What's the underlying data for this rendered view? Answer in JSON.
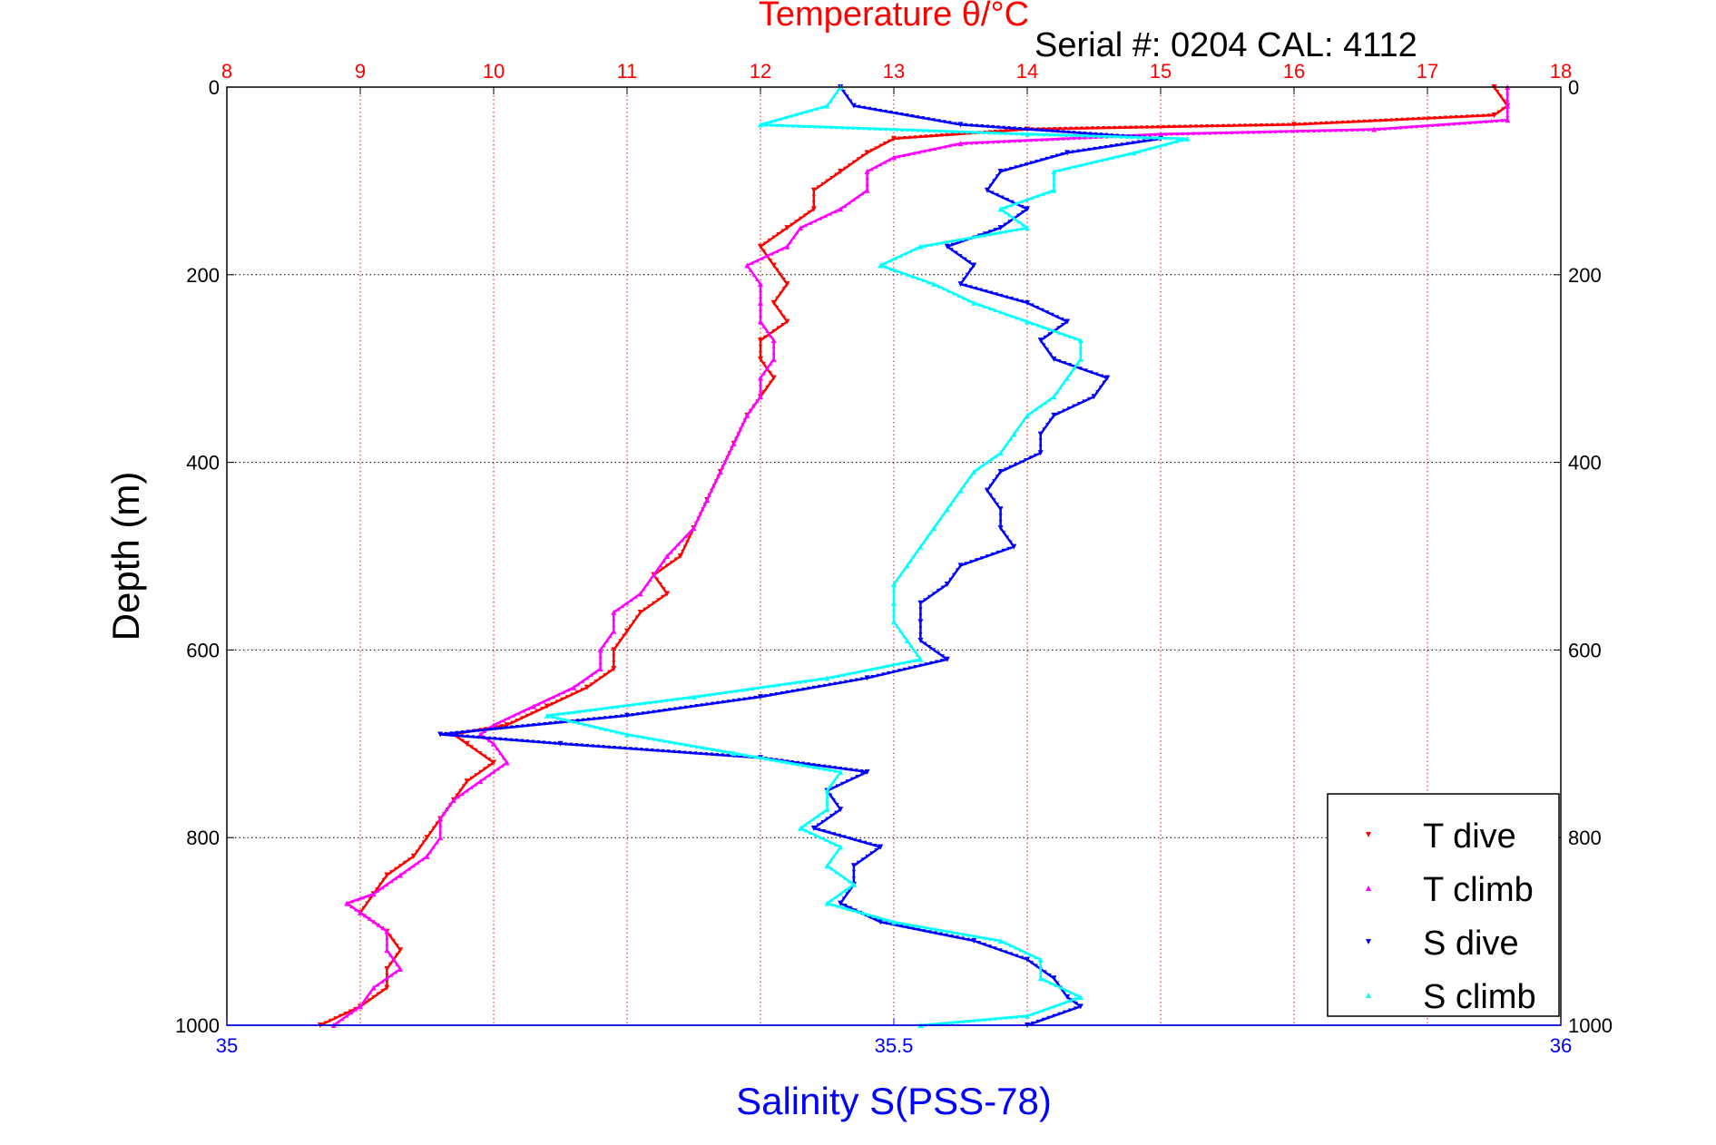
{
  "chart_data": {
    "type": "scatter",
    "title": "Temperature θ/°C",
    "subtitle": "Serial #: 0204  CAL: 4112",
    "ylabel": "Depth (m)",
    "x2label": "Salinity S(PSS-78)",
    "colors": {
      "title": "#ff0000",
      "x2label": "#0000ff",
      "grid_temp": "#ff0000",
      "grid_depth": "#000000"
    },
    "x_top": {
      "label": "Temperature θ/°C",
      "range": [
        8,
        18
      ],
      "ticks": [
        "8",
        "9",
        "10",
        "11",
        "12",
        "13",
        "14",
        "15",
        "16",
        "17",
        "18"
      ],
      "color": "#ff0000"
    },
    "x_bottom": {
      "label": "Salinity S(PSS-78)",
      "range": [
        35,
        36
      ],
      "ticks": [
        "35",
        "35.5",
        "36"
      ],
      "color": "#0000ff"
    },
    "y": {
      "label": "Depth (m)",
      "range": [
        0,
        1000
      ],
      "reversed": true,
      "ticks": [
        "0",
        "200",
        "400",
        "600",
        "800",
        "1000"
      ]
    },
    "grid": true,
    "legend_placement": "bottom-right",
    "series": [
      {
        "name": "T dive",
        "axis": "temperature",
        "color": "#ff0000",
        "marker": "triangle-down",
        "points": [
          [
            17.5,
            0
          ],
          [
            17.6,
            20
          ],
          [
            17.5,
            30
          ],
          [
            16.0,
            40
          ],
          [
            14.0,
            45
          ],
          [
            13.0,
            55
          ],
          [
            12.8,
            70
          ],
          [
            12.6,
            90
          ],
          [
            12.4,
            110
          ],
          [
            12.4,
            130
          ],
          [
            12.2,
            150
          ],
          [
            12.0,
            170
          ],
          [
            12.1,
            190
          ],
          [
            12.2,
            210
          ],
          [
            12.1,
            230
          ],
          [
            12.2,
            250
          ],
          [
            12.0,
            270
          ],
          [
            12.0,
            290
          ],
          [
            12.1,
            310
          ],
          [
            12.0,
            330
          ],
          [
            11.9,
            350
          ],
          [
            11.8,
            380
          ],
          [
            11.7,
            410
          ],
          [
            11.6,
            440
          ],
          [
            11.5,
            470
          ],
          [
            11.4,
            500
          ],
          [
            11.2,
            520
          ],
          [
            11.3,
            540
          ],
          [
            11.1,
            560
          ],
          [
            11.0,
            580
          ],
          [
            10.9,
            600
          ],
          [
            10.9,
            620
          ],
          [
            10.7,
            640
          ],
          [
            10.4,
            660
          ],
          [
            10.1,
            680
          ],
          [
            9.7,
            690
          ],
          [
            9.8,
            700
          ],
          [
            10.0,
            720
          ],
          [
            9.8,
            740
          ],
          [
            9.7,
            760
          ],
          [
            9.6,
            780
          ],
          [
            9.5,
            800
          ],
          [
            9.4,
            820
          ],
          [
            9.2,
            840
          ],
          [
            9.1,
            860
          ],
          [
            9.0,
            880
          ],
          [
            9.2,
            900
          ],
          [
            9.3,
            920
          ],
          [
            9.2,
            940
          ],
          [
            9.2,
            960
          ],
          [
            9.0,
            980
          ],
          [
            8.7,
            1000
          ]
        ]
      },
      {
        "name": "T climb",
        "axis": "temperature",
        "color": "#ff00ff",
        "marker": "triangle-up",
        "points": [
          [
            17.6,
            0
          ],
          [
            17.6,
            20
          ],
          [
            17.6,
            35
          ],
          [
            16.6,
            45
          ],
          [
            15.0,
            50
          ],
          [
            13.5,
            60
          ],
          [
            13.0,
            75
          ],
          [
            12.8,
            90
          ],
          [
            12.8,
            110
          ],
          [
            12.6,
            130
          ],
          [
            12.3,
            150
          ],
          [
            12.2,
            170
          ],
          [
            11.9,
            190
          ],
          [
            12.0,
            210
          ],
          [
            12.0,
            230
          ],
          [
            12.0,
            250
          ],
          [
            12.1,
            270
          ],
          [
            12.1,
            290
          ],
          [
            12.0,
            310
          ],
          [
            12.0,
            330
          ],
          [
            11.9,
            350
          ],
          [
            11.8,
            380
          ],
          [
            11.7,
            410
          ],
          [
            11.6,
            440
          ],
          [
            11.5,
            470
          ],
          [
            11.3,
            500
          ],
          [
            11.2,
            520
          ],
          [
            11.1,
            540
          ],
          [
            10.9,
            560
          ],
          [
            10.9,
            580
          ],
          [
            10.8,
            600
          ],
          [
            10.8,
            620
          ],
          [
            10.6,
            640
          ],
          [
            10.3,
            660
          ],
          [
            10.0,
            680
          ],
          [
            9.9,
            690
          ],
          [
            10.0,
            700
          ],
          [
            10.1,
            720
          ],
          [
            9.9,
            740
          ],
          [
            9.7,
            760
          ],
          [
            9.6,
            780
          ],
          [
            9.6,
            800
          ],
          [
            9.5,
            820
          ],
          [
            9.3,
            840
          ],
          [
            9.1,
            860
          ],
          [
            8.9,
            870
          ],
          [
            9.0,
            880
          ],
          [
            9.2,
            900
          ],
          [
            9.2,
            920
          ],
          [
            9.3,
            940
          ],
          [
            9.1,
            960
          ],
          [
            9.0,
            980
          ],
          [
            8.8,
            1000
          ]
        ]
      },
      {
        "name": "S dive",
        "axis": "salinity",
        "color": "#0000ff",
        "marker": "triangle-down",
        "points": [
          [
            35.46,
            0
          ],
          [
            35.47,
            20
          ],
          [
            35.55,
            40
          ],
          [
            35.7,
            55
          ],
          [
            35.63,
            70
          ],
          [
            35.58,
            90
          ],
          [
            35.57,
            110
          ],
          [
            35.6,
            130
          ],
          [
            35.58,
            150
          ],
          [
            35.54,
            170
          ],
          [
            35.56,
            190
          ],
          [
            35.55,
            210
          ],
          [
            35.6,
            230
          ],
          [
            35.63,
            250
          ],
          [
            35.61,
            270
          ],
          [
            35.62,
            290
          ],
          [
            35.66,
            310
          ],
          [
            35.65,
            330
          ],
          [
            35.62,
            350
          ],
          [
            35.61,
            370
          ],
          [
            35.61,
            390
          ],
          [
            35.58,
            410
          ],
          [
            35.57,
            430
          ],
          [
            35.58,
            450
          ],
          [
            35.58,
            470
          ],
          [
            35.59,
            490
          ],
          [
            35.55,
            510
          ],
          [
            35.54,
            530
          ],
          [
            35.52,
            550
          ],
          [
            35.52,
            570
          ],
          [
            35.52,
            590
          ],
          [
            35.54,
            610
          ],
          [
            35.48,
            630
          ],
          [
            35.4,
            650
          ],
          [
            35.3,
            670
          ],
          [
            35.16,
            690
          ],
          [
            35.25,
            700
          ],
          [
            35.4,
            715
          ],
          [
            35.48,
            730
          ],
          [
            35.45,
            750
          ],
          [
            35.46,
            770
          ],
          [
            35.44,
            790
          ],
          [
            35.49,
            810
          ],
          [
            35.47,
            830
          ],
          [
            35.47,
            850
          ],
          [
            35.46,
            870
          ],
          [
            35.49,
            890
          ],
          [
            35.56,
            910
          ],
          [
            35.6,
            930
          ],
          [
            35.62,
            950
          ],
          [
            35.63,
            970
          ],
          [
            35.64,
            980
          ],
          [
            35.6,
            1000
          ]
        ]
      },
      {
        "name": "S climb",
        "axis": "salinity",
        "color": "#00ffff",
        "marker": "triangle-up",
        "points": [
          [
            35.46,
            0
          ],
          [
            35.45,
            20
          ],
          [
            35.4,
            40
          ],
          [
            35.6,
            50
          ],
          [
            35.72,
            55
          ],
          [
            35.68,
            70
          ],
          [
            35.62,
            90
          ],
          [
            35.62,
            110
          ],
          [
            35.58,
            130
          ],
          [
            35.6,
            150
          ],
          [
            35.52,
            170
          ],
          [
            35.49,
            190
          ],
          [
            35.53,
            210
          ],
          [
            35.56,
            230
          ],
          [
            35.6,
            250
          ],
          [
            35.64,
            270
          ],
          [
            35.64,
            290
          ],
          [
            35.63,
            310
          ],
          [
            35.62,
            330
          ],
          [
            35.6,
            350
          ],
          [
            35.59,
            370
          ],
          [
            35.58,
            390
          ],
          [
            35.56,
            410
          ],
          [
            35.55,
            430
          ],
          [
            35.54,
            450
          ],
          [
            35.53,
            470
          ],
          [
            35.52,
            490
          ],
          [
            35.51,
            510
          ],
          [
            35.5,
            530
          ],
          [
            35.5,
            550
          ],
          [
            35.5,
            570
          ],
          [
            35.51,
            590
          ],
          [
            35.52,
            610
          ],
          [
            35.45,
            630
          ],
          [
            35.35,
            650
          ],
          [
            35.24,
            670
          ],
          [
            35.3,
            690
          ],
          [
            35.38,
            710
          ],
          [
            35.46,
            730
          ],
          [
            35.45,
            750
          ],
          [
            35.45,
            770
          ],
          [
            35.43,
            790
          ],
          [
            35.46,
            810
          ],
          [
            35.45,
            830
          ],
          [
            35.47,
            850
          ],
          [
            35.45,
            870
          ],
          [
            35.5,
            890
          ],
          [
            35.58,
            910
          ],
          [
            35.61,
            930
          ],
          [
            35.61,
            950
          ],
          [
            35.64,
            970
          ],
          [
            35.6,
            990
          ],
          [
            35.52,
            1000
          ]
        ]
      }
    ]
  }
}
